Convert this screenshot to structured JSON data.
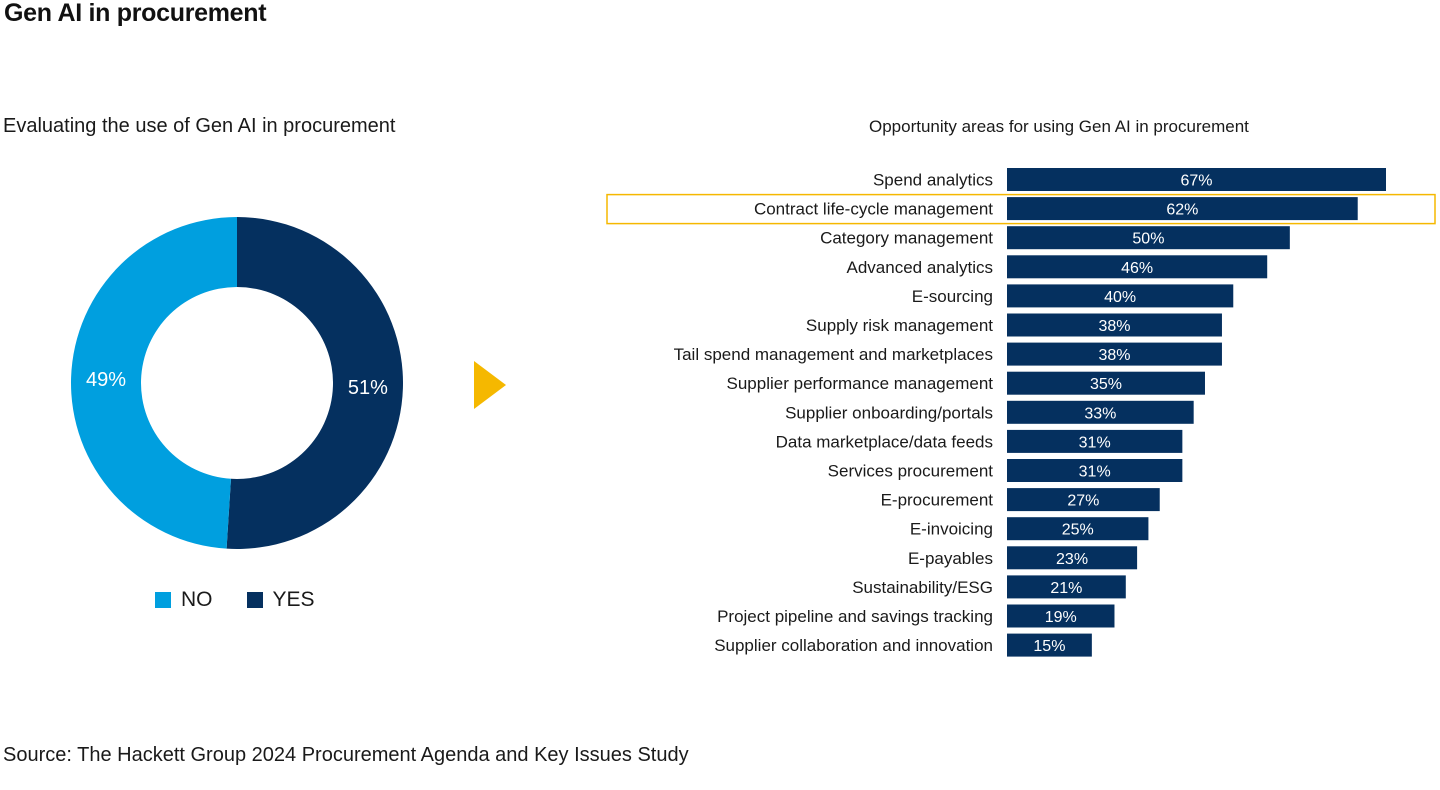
{
  "page": {
    "title": "Gen AI in procurement",
    "source": "Source: The Hackett Group 2024 Procurement Agenda and Key Issues Study"
  },
  "colors": {
    "light_blue": "#009fdf",
    "navy": "#05305f",
    "highlight": "#f5b800",
    "arrow": "#f5b800"
  },
  "chart_data": [
    {
      "type": "pie",
      "title": "Evaluating the use of Gen AI in procurement",
      "categories": [
        "NO",
        "YES"
      ],
      "values": [
        49,
        51
      ],
      "labels": [
        "49%",
        "51%"
      ],
      "legend": [
        "NO",
        "YES"
      ],
      "donut": true
    },
    {
      "type": "bar",
      "orientation": "horizontal",
      "title": "Opportunity areas for using Gen AI in procurement",
      "categories": [
        "Spend analytics",
        "Contract life-cycle management",
        "Category management",
        "Advanced analytics",
        "E-sourcing",
        "Supply risk management",
        "Tail spend management and marketplaces",
        "Supplier performance management",
        "Supplier onboarding/portals",
        "Data marketplace/data feeds",
        "Services procurement",
        "E-procurement",
        "E-invoicing",
        "E-payables",
        "Sustainability/ESG",
        "Project pipeline and savings tracking",
        "Supplier collaboration and innovation"
      ],
      "values": [
        67,
        62,
        50,
        46,
        40,
        38,
        38,
        35,
        33,
        31,
        31,
        27,
        25,
        23,
        21,
        19,
        15
      ],
      "labels": [
        "67%",
        "62%",
        "50%",
        "46%",
        "40%",
        "38%",
        "38%",
        "35%",
        "33%",
        "31%",
        "31%",
        "27%",
        "25%",
        "23%",
        "21%",
        "19%",
        "15%"
      ],
      "highlighted_category": "Contract life-cycle management",
      "xlim": [
        0,
        100
      ]
    }
  ]
}
